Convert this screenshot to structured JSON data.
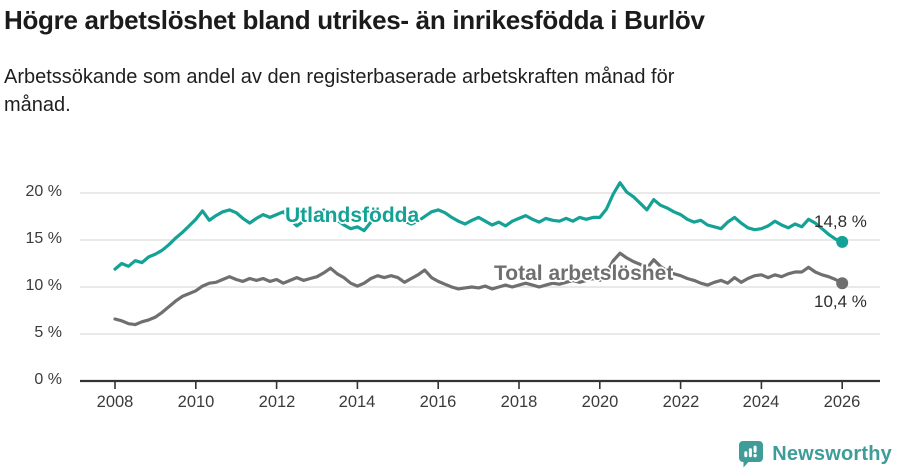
{
  "header": {
    "title": "Högre arbetslöshet bland utrikes- än inrikesfödda i Burlöv",
    "subtitle_line1": "Arbetssökande som andel av den registerbaserade arbetskraften månad för",
    "subtitle_line2": "månad."
  },
  "chart_data": {
    "type": "line",
    "title": "Högre arbetslöshet bland utrikes- än inrikesfödda i Burlöv",
    "subtitle": "Arbetssökande som andel av den registerbaserade arbetskraften månad för månad.",
    "xlabel": "",
    "ylabel": "",
    "ylim": [
      0,
      22
    ],
    "xlim": [
      2008,
      2026
    ],
    "grid": "horizontal",
    "legend": "inline-labels",
    "x_start": 2008,
    "x_step": 0.1666667,
    "x_axis": {
      "ticks": [
        2008,
        2010,
        2012,
        2014,
        2016,
        2018,
        2020,
        2022,
        2024,
        2026
      ],
      "labels": [
        "2008",
        "2010",
        "2012",
        "2014",
        "2016",
        "2018",
        "2020",
        "2022",
        "2024",
        "2026"
      ]
    },
    "y_axis": {
      "gridlines": [
        5,
        10,
        15,
        20
      ],
      "labels": [
        {
          "v": 0,
          "text": "0 %"
        },
        {
          "v": 5,
          "text": "5 %"
        },
        {
          "v": 10,
          "text": "10 %"
        },
        {
          "v": 15,
          "text": "15 %"
        },
        {
          "v": 20,
          "text": "20 %"
        }
      ]
    },
    "series": [
      {
        "key": "utlandsfodda",
        "name": "Utlandsfödda",
        "color": "#13a295",
        "end_label": "14,8 %",
        "end_value": 14.8,
        "values": [
          11.9,
          12.5,
          12.2,
          12.8,
          12.6,
          13.2,
          13.5,
          13.9,
          14.5,
          15.2,
          15.8,
          16.5,
          17.2,
          18.1,
          17.1,
          17.6,
          18.0,
          18.2,
          17.9,
          17.3,
          16.8,
          17.3,
          17.7,
          17.4,
          17.7,
          18.0,
          17.2,
          16.5,
          17.0,
          17.4,
          17.7,
          18.2,
          17.6,
          17.1,
          16.6,
          16.2,
          16.4,
          16.0,
          16.9,
          17.4,
          17.2,
          17.0,
          17.3,
          17.0,
          16.7,
          17.0,
          17.5,
          18.0,
          18.2,
          17.9,
          17.4,
          17.0,
          16.7,
          17.1,
          17.4,
          17.0,
          16.6,
          16.9,
          16.5,
          17.0,
          17.3,
          17.6,
          17.2,
          16.9,
          17.3,
          17.1,
          17.0,
          17.3,
          17.0,
          17.4,
          17.2,
          17.4,
          17.4,
          18.3,
          19.9,
          21.1,
          20.1,
          19.6,
          18.9,
          18.2,
          19.3,
          18.7,
          18.4,
          18.0,
          17.7,
          17.2,
          16.9,
          17.1,
          16.6,
          16.4,
          16.2,
          16.9,
          17.4,
          16.8,
          16.3,
          16.1,
          16.2,
          16.5,
          17.0,
          16.6,
          16.3,
          16.7,
          16.4,
          17.2,
          16.8,
          16.2,
          15.6,
          15.1,
          14.8
        ]
      },
      {
        "key": "total",
        "name": "Total arbetslöshet",
        "color": "#6f6f6f",
        "end_label": "10,4 %",
        "end_value": 10.4,
        "values": [
          6.6,
          6.4,
          6.1,
          6.0,
          6.3,
          6.5,
          6.8,
          7.3,
          7.9,
          8.5,
          9.0,
          9.3,
          9.6,
          10.1,
          10.4,
          10.5,
          10.8,
          11.1,
          10.8,
          10.6,
          10.9,
          10.7,
          10.9,
          10.6,
          10.8,
          10.4,
          10.7,
          11.0,
          10.7,
          10.9,
          11.1,
          11.5,
          12.0,
          11.4,
          11.0,
          10.4,
          10.1,
          10.4,
          10.9,
          11.2,
          11.0,
          11.2,
          11.0,
          10.5,
          10.9,
          11.3,
          11.8,
          11.0,
          10.6,
          10.3,
          10.0,
          9.8,
          9.9,
          10.0,
          9.9,
          10.1,
          9.8,
          10.0,
          10.2,
          10.0,
          10.2,
          10.4,
          10.2,
          10.0,
          10.2,
          10.4,
          10.3,
          10.5,
          10.7,
          10.5,
          10.7,
          10.9,
          10.7,
          11.5,
          12.8,
          13.6,
          13.1,
          12.7,
          12.4,
          12.0,
          12.9,
          12.2,
          11.7,
          11.4,
          11.2,
          10.9,
          10.7,
          10.4,
          10.2,
          10.5,
          10.7,
          10.4,
          11.0,
          10.5,
          10.9,
          11.2,
          11.3,
          11.0,
          11.3,
          11.1,
          11.4,
          11.6,
          11.6,
          12.1,
          11.6,
          11.3,
          11.1,
          10.8,
          10.4
        ]
      }
    ],
    "colors": {
      "grid": "#dcdcdc",
      "axis": "#333333",
      "tick_text": "#3b3b3b"
    }
  },
  "footer": {
    "brand": "Newsworthy",
    "icon": "newsworthy-chart-bubble-icon",
    "brand_color": "#3e9c99"
  }
}
